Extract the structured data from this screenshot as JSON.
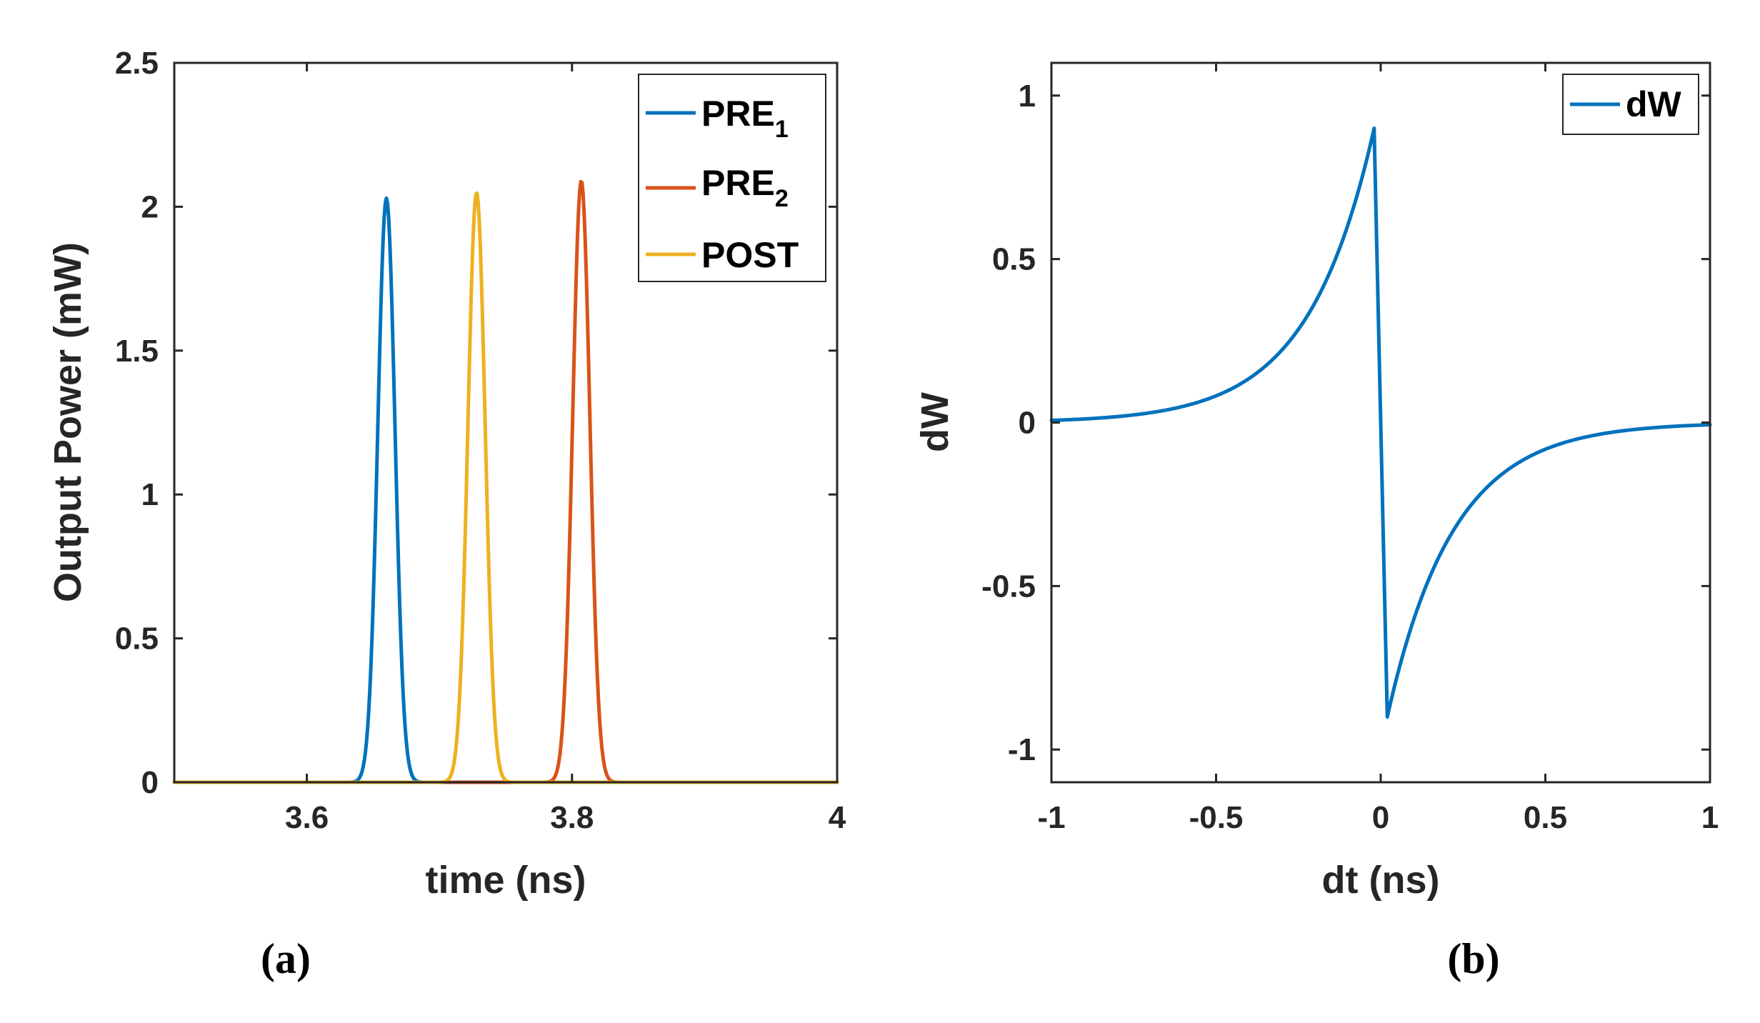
{
  "chart_data": [
    {
      "type": "line",
      "panel_label": "(a)",
      "title": "",
      "xlabel": "time (ns)",
      "ylabel": "Output Power (mW)",
      "xlim": [
        3.5,
        4.0
      ],
      "ylim": [
        0,
        2.5
      ],
      "xticks": [
        3.6,
        3.8,
        4.0
      ],
      "xtick_labels": [
        "3.6",
        "3.8",
        "4"
      ],
      "yticks": [
        0,
        0.5,
        1.0,
        1.5,
        2.0,
        2.5
      ],
      "ytick_labels": [
        "0",
        "0.5",
        "1",
        "1.5",
        "2",
        "2.5"
      ],
      "legend_position": "top-right",
      "series": [
        {
          "name": "PRE",
          "subscript": "1",
          "color": "#0072BD",
          "center": 3.66,
          "peak": 2.03,
          "sigma": 0.0065
        },
        {
          "name": "PRE",
          "subscript": "2",
          "color": "#D95319",
          "center": 3.807,
          "peak": 2.09,
          "sigma": 0.0065
        },
        {
          "name": "POST",
          "subscript": "",
          "color": "#EDB120",
          "center": 3.728,
          "peak": 2.05,
          "sigma": 0.0065
        }
      ]
    },
    {
      "type": "line",
      "panel_label": "(b)",
      "title": "",
      "xlabel": "dt (ns)",
      "ylabel": "dW",
      "xlim": [
        -1,
        1
      ],
      "ylim": [
        -1.1,
        1.1
      ],
      "xticks": [
        -1,
        -0.5,
        0,
        0.5,
        1
      ],
      "xtick_labels": [
        "-1",
        "-0.5",
        "0",
        "0.5",
        "1"
      ],
      "yticks": [
        -1,
        -0.5,
        0,
        0.5,
        1
      ],
      "ytick_labels": [
        "-1",
        "-0.5",
        "0",
        "0.5",
        "1"
      ],
      "legend_position": "top-right",
      "series": [
        {
          "name": "dW",
          "color": "#0072BD",
          "positive_amplitude": 0.9,
          "negative_amplitude": -0.9,
          "tau": 0.2,
          "gap": 0.02
        }
      ]
    }
  ]
}
